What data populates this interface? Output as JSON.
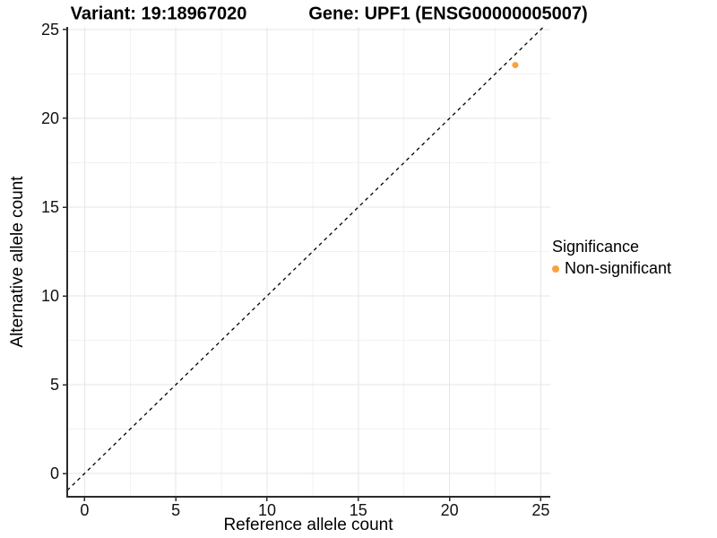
{
  "titles": {
    "variant": "Variant: 19:18967020",
    "gene": "Gene: UPF1 (ENSG00000005007)"
  },
  "axes": {
    "x_label": "Reference allele count",
    "y_label": "Alternative allele count"
  },
  "legend": {
    "title": "Significance",
    "items": [
      {
        "label": "Non-significant",
        "color": "#F9A23C"
      }
    ]
  },
  "colors": {
    "point_orange": "#F9A23C",
    "axis_line": "#2b2b2b",
    "grid_major": "#e6e6e6",
    "grid_minor": "#f2f2f2",
    "reference_line": "#000000"
  },
  "chart_data": {
    "type": "scatter",
    "title": "Variant: 19:18967020 | Gene: UPF1 (ENSG00000005007)",
    "xlabel": "Reference allele count",
    "ylabel": "Alternative allele count",
    "xlim": [
      -0.95,
      25.52
    ],
    "ylim": [
      -1.31,
      25.15
    ],
    "x_ticks": [
      0,
      5,
      10,
      15,
      20,
      25
    ],
    "y_ticks": [
      0,
      5,
      10,
      15,
      20,
      25
    ],
    "x_minor_ticks": [
      2.5,
      7.5,
      12.5,
      17.5,
      22.5
    ],
    "y_minor_ticks": [
      2.5,
      7.5,
      12.5,
      17.5,
      22.5
    ],
    "grid": true,
    "legend_position": "right",
    "series": [
      {
        "name": "Non-significant",
        "color": "#F9A23C",
        "points": [
          {
            "x": 23.6,
            "y": 23
          }
        ]
      }
    ],
    "reference_line": {
      "kind": "identity",
      "equation": "y = x",
      "style": "dashed",
      "color": "#000000"
    }
  }
}
